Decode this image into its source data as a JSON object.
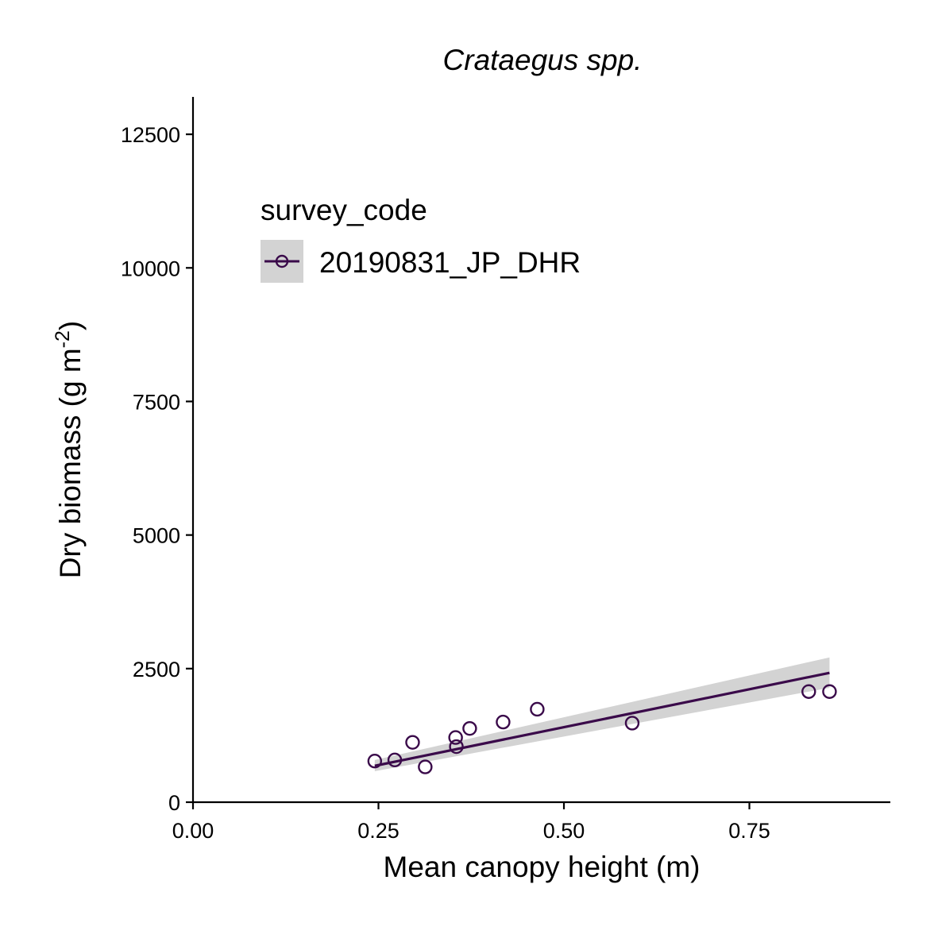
{
  "chart_data": {
    "type": "scatter",
    "title": "Crataegus spp.",
    "xlabel": "Mean canopy height (m)",
    "ylabel_main": "Dry biomass (g m",
    "ylabel_sup": "-2",
    "ylabel_end": ")",
    "xlim": [
      0,
      0.94
    ],
    "ylim": [
      0,
      13200
    ],
    "x_ticks": [
      0,
      0.25,
      0.5,
      0.75
    ],
    "x_tick_labels": [
      "0.00",
      "0.25",
      "0.50",
      "0.75"
    ],
    "y_ticks": [
      0,
      2500,
      5000,
      7500,
      10000,
      12500
    ],
    "y_tick_labels": [
      "0",
      "2500",
      "5000",
      "7500",
      "10000",
      "12500"
    ],
    "grid": false,
    "legend": {
      "title": "survey_code",
      "placement": "top-left",
      "entries": [
        "20190831_JP_DHR"
      ]
    },
    "colors": {
      "series": "#3a0a4a",
      "ribbon": "#d3d3d3"
    },
    "series": [
      {
        "name": "20190831_JP_DHR",
        "points": [
          {
            "x": 0.245,
            "y": 770
          },
          {
            "x": 0.272,
            "y": 790
          },
          {
            "x": 0.296,
            "y": 1120
          },
          {
            "x": 0.313,
            "y": 660
          },
          {
            "x": 0.354,
            "y": 1210
          },
          {
            "x": 0.355,
            "y": 1040
          },
          {
            "x": 0.373,
            "y": 1380
          },
          {
            "x": 0.418,
            "y": 1500
          },
          {
            "x": 0.464,
            "y": 1740
          },
          {
            "x": 0.592,
            "y": 1480
          },
          {
            "x": 0.83,
            "y": 2070
          },
          {
            "x": 0.858,
            "y": 2070
          }
        ],
        "fit": {
          "x": [
            0.245,
            0.858
          ],
          "y": [
            680,
            2420
          ],
          "lower": [
            580,
            2140
          ],
          "upper": [
            790,
            2710
          ]
        }
      }
    ]
  }
}
